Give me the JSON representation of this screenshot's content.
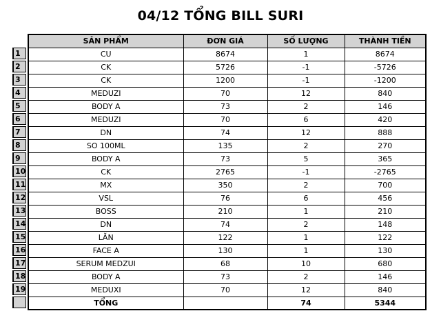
{
  "title": "04/12 TỔNG BILL SURI",
  "table": {
    "headers": {
      "product": "SẢN PHẨM",
      "unit_price": "ĐƠN GIÁ",
      "quantity": "SỐ LƯỢNG",
      "amount": "THÀNH TIỀN"
    },
    "rows": [
      {
        "n": "1",
        "product": "CU",
        "unit_price": "8674",
        "quantity": "1",
        "amount": "8674"
      },
      {
        "n": "2",
        "product": "CK",
        "unit_price": "5726",
        "quantity": "-1",
        "amount": "-5726"
      },
      {
        "n": "3",
        "product": "CK",
        "unit_price": "1200",
        "quantity": "-1",
        "amount": "-1200"
      },
      {
        "n": "4",
        "product": "MEDUZI",
        "unit_price": "70",
        "quantity": "12",
        "amount": "840"
      },
      {
        "n": "5",
        "product": "BODY A",
        "unit_price": "73",
        "quantity": "2",
        "amount": "146"
      },
      {
        "n": "6",
        "product": "MEDUZI",
        "unit_price": "70",
        "quantity": "6",
        "amount": "420"
      },
      {
        "n": "7",
        "product": "DN",
        "unit_price": "74",
        "quantity": "12",
        "amount": "888"
      },
      {
        "n": "8",
        "product": "SO 100ML",
        "unit_price": "135",
        "quantity": "2",
        "amount": "270"
      },
      {
        "n": "9",
        "product": "BODY A",
        "unit_price": "73",
        "quantity": "5",
        "amount": "365"
      },
      {
        "n": "10",
        "product": "CK",
        "unit_price": "2765",
        "quantity": "-1",
        "amount": "-2765"
      },
      {
        "n": "11",
        "product": "MX",
        "unit_price": "350",
        "quantity": "2",
        "amount": "700"
      },
      {
        "n": "12",
        "product": "VSL",
        "unit_price": "76",
        "quantity": "6",
        "amount": "456"
      },
      {
        "n": "13",
        "product": "BOSS",
        "unit_price": "210",
        "quantity": "1",
        "amount": "210"
      },
      {
        "n": "14",
        "product": "DN",
        "unit_price": "74",
        "quantity": "2",
        "amount": "148"
      },
      {
        "n": "15",
        "product": "LĂN",
        "unit_price": "122",
        "quantity": "1",
        "amount": "122"
      },
      {
        "n": "16",
        "product": "FACE A",
        "unit_price": "130",
        "quantity": "1",
        "amount": "130"
      },
      {
        "n": "17",
        "product": "SERUM MEDZUI",
        "unit_price": "68",
        "quantity": "10",
        "amount": "680"
      },
      {
        "n": "18",
        "product": "BODY A",
        "unit_price": "73",
        "quantity": "2",
        "amount": "146"
      },
      {
        "n": "19",
        "product": "MEDUXI",
        "unit_price": "70",
        "quantity": "12",
        "amount": "840"
      }
    ],
    "total_row": {
      "n": "",
      "label": "TỔNG",
      "unit_price": "",
      "quantity": "74",
      "amount": "5344"
    }
  },
  "colors": {
    "background": "#ffffff",
    "header_bg": "#d3d3d3",
    "gutter_bg": "#d3d3d3",
    "border": "#000000"
  }
}
